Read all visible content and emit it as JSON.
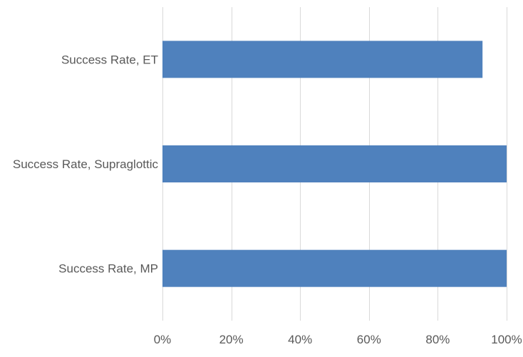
{
  "chart_data": {
    "type": "bar",
    "orientation": "horizontal",
    "categories": [
      "Success Rate, ET",
      "Success Rate, Supraglottic",
      "Success Rate, MP"
    ],
    "values": [
      93,
      100,
      100
    ],
    "xlim": [
      0,
      100
    ],
    "x_ticks": [
      0,
      20,
      40,
      60,
      80,
      100
    ],
    "x_tick_labels": [
      "0%",
      "20%",
      "40%",
      "60%",
      "80%",
      "100%"
    ],
    "title": "",
    "xlabel": "",
    "ylabel": "",
    "grid": "vertical gridlines",
    "legend": "none",
    "bar_color": "#4f81bd",
    "grid_color": "#d9d9d9",
    "label_color": "#595959"
  }
}
